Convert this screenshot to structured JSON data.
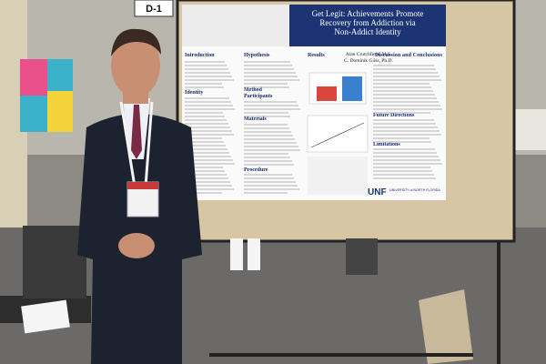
{
  "sign": {
    "label": "D-1"
  },
  "poster": {
    "title_lines": [
      "Get Legit: Achievements Promote",
      "Recovery from Addiction via",
      "Non-Addict Identity"
    ],
    "authors": [
      "Alan Crutchfield, M.S.",
      "C. Dominik Güss, Ph.D."
    ],
    "sections": [
      "Introduction",
      "Hypothesis",
      "Results",
      "Discussion and Conclusions",
      "Identity",
      "Method",
      "Participants",
      "Materials",
      "Procedure",
      "Future Directions",
      "Limitations"
    ],
    "logo": {
      "mark": "UNF",
      "name": "UNIVERSITY of NORTH FLORIDA"
    }
  }
}
